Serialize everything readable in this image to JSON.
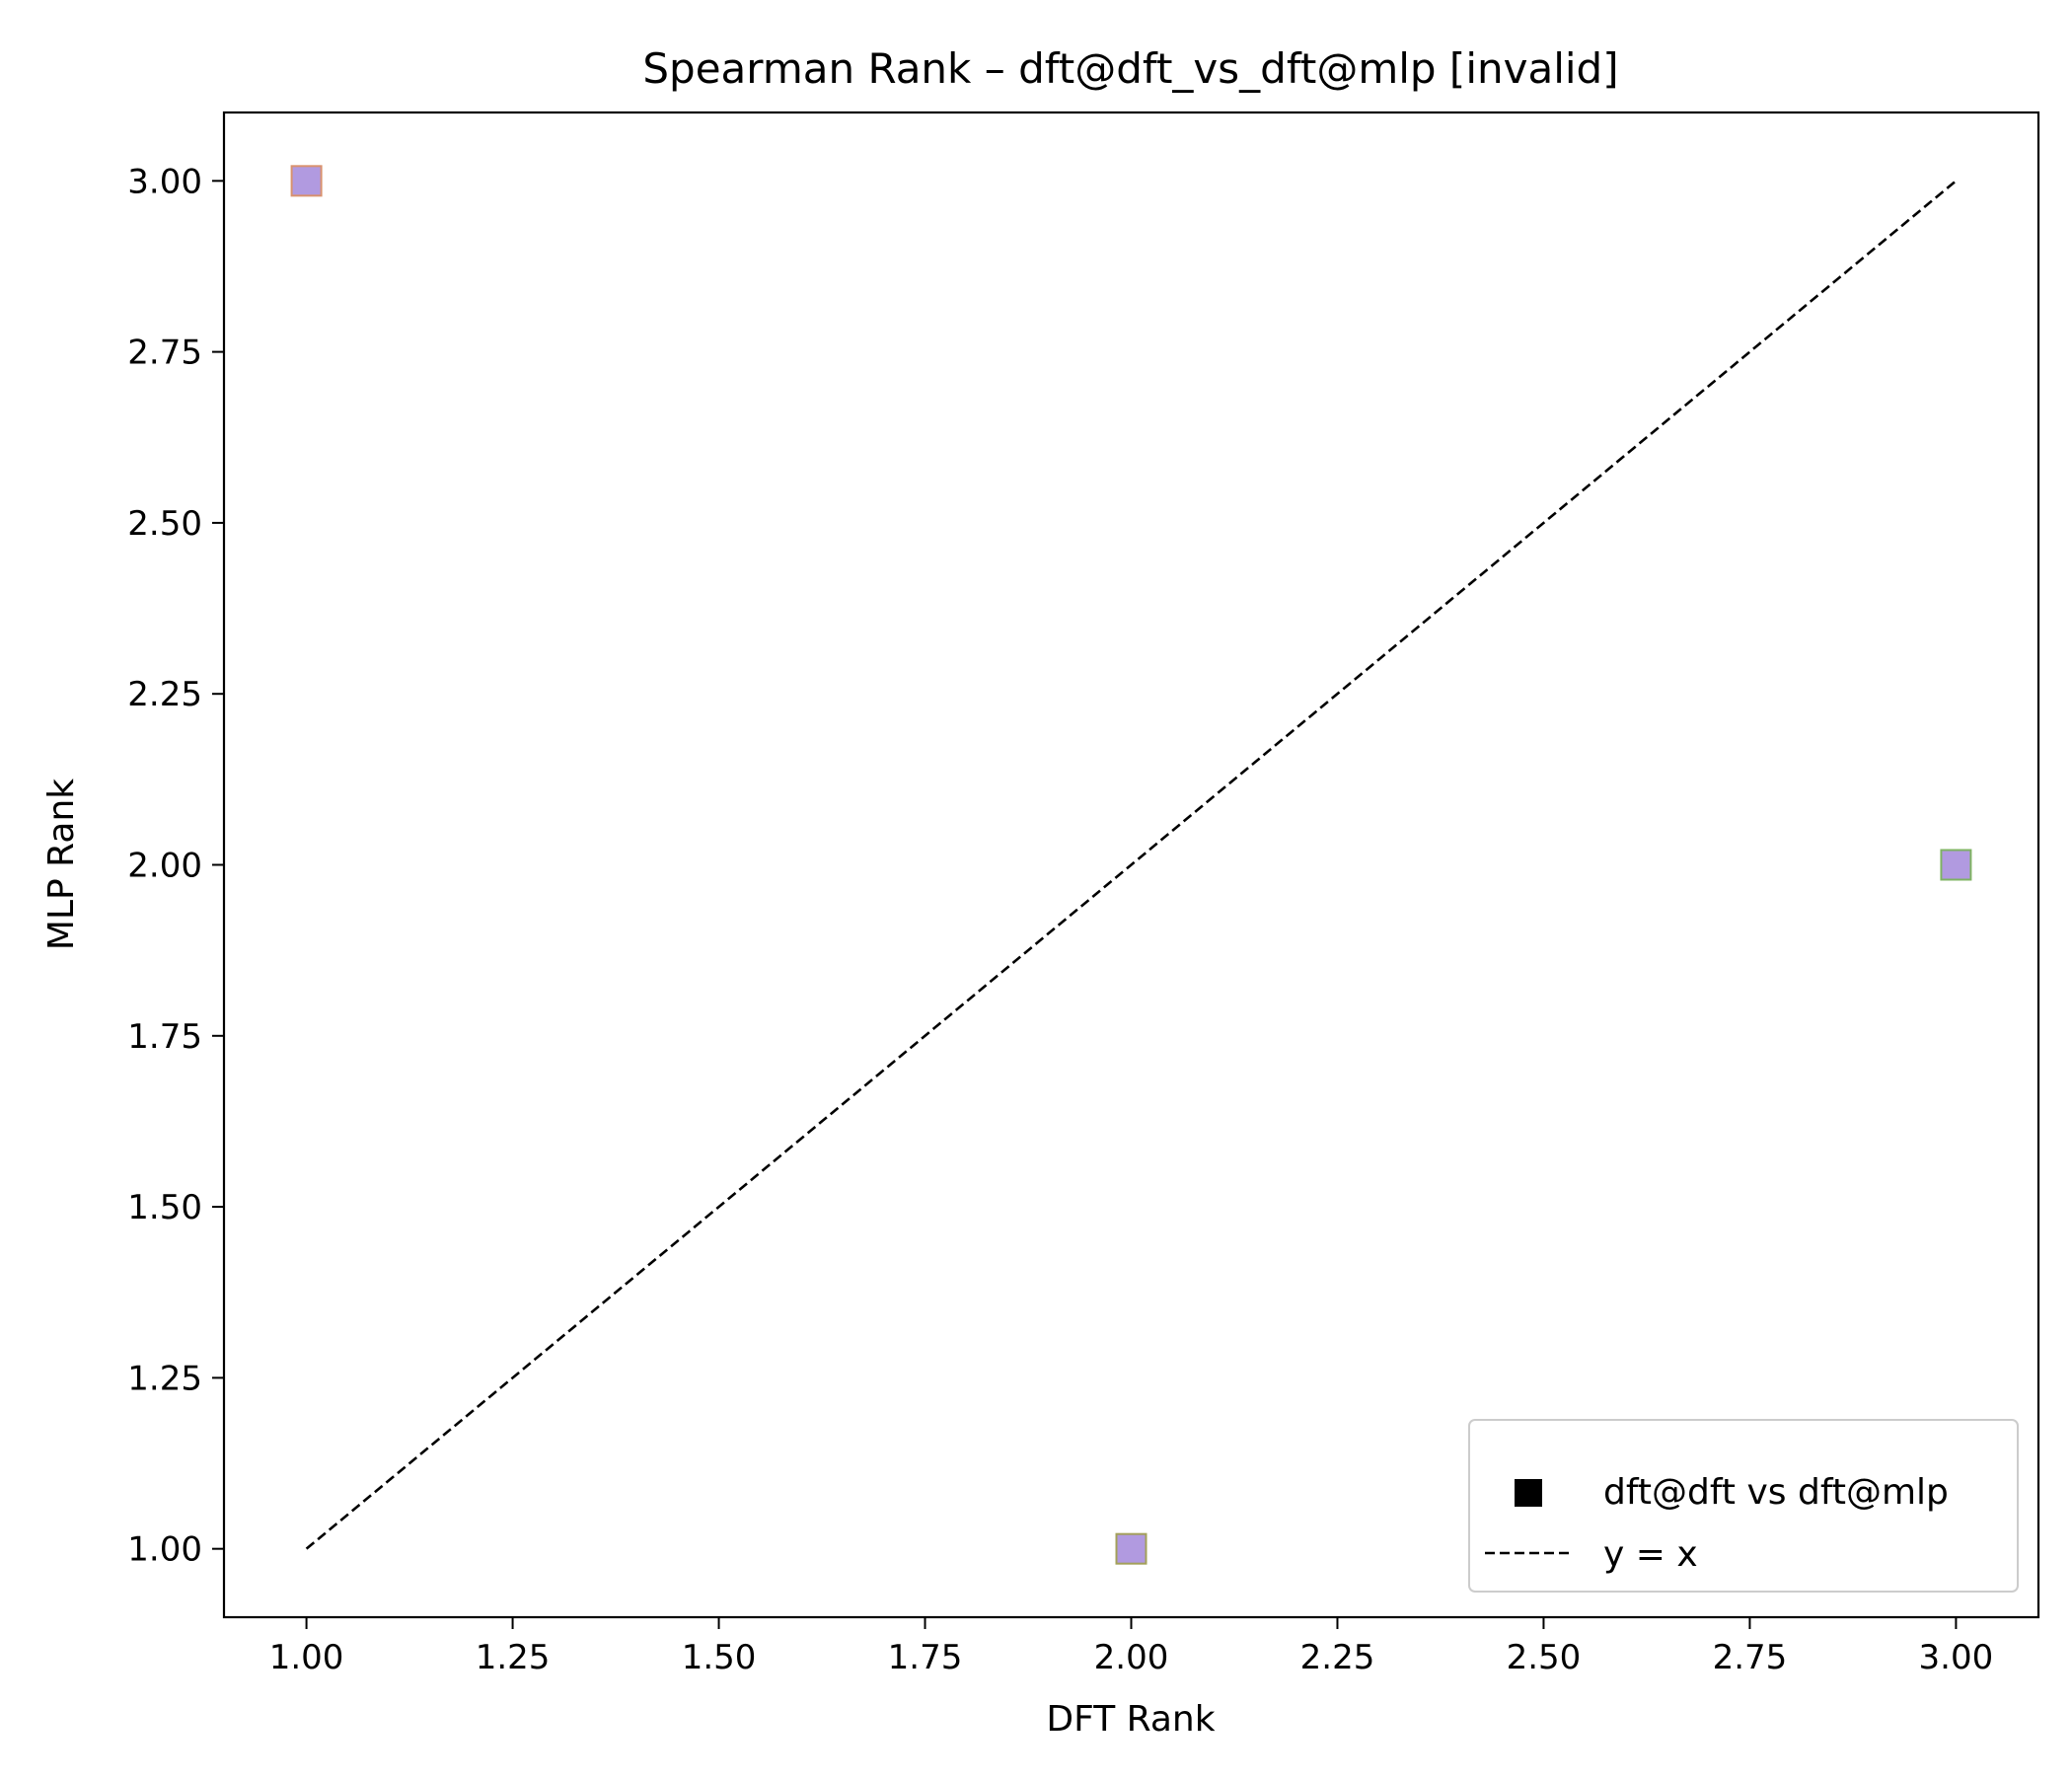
{
  "chart_data": {
    "type": "scatter",
    "title": "Spearman Rank – dft@dft_vs_dft@mlp [invalid]",
    "xlabel": "DFT Rank",
    "ylabel": "MLP Rank",
    "xlim": [
      0.9,
      3.1
    ],
    "ylim": [
      0.9,
      3.1
    ],
    "xticks": [
      1.0,
      1.25,
      1.5,
      1.75,
      2.0,
      2.25,
      2.5,
      2.75,
      3.0
    ],
    "yticks": [
      1.0,
      1.25,
      1.5,
      1.75,
      2.0,
      2.25,
      2.5,
      2.75,
      3.0
    ],
    "xtick_labels": [
      "1.00",
      "1.25",
      "1.50",
      "1.75",
      "2.00",
      "2.25",
      "2.50",
      "2.75",
      "3.00"
    ],
    "ytick_labels": [
      "1.00",
      "1.25",
      "1.50",
      "1.75",
      "2.00",
      "2.25",
      "2.50",
      "2.75",
      "3.00"
    ],
    "grid": false,
    "legend_position": "bottom-right",
    "series": [
      {
        "name": "dft@dft vs dft@mlp",
        "marker": "square",
        "legend_color": "#000000",
        "points": [
          {
            "x": 1,
            "y": 3,
            "fill": "#b19ae0",
            "edge": "#d9926f"
          },
          {
            "x": 2,
            "y": 1,
            "fill": "#b19ae0",
            "edge": "#a3a05a"
          },
          {
            "x": 3,
            "y": 2,
            "fill": "#b19ae0",
            "edge": "#7fb363"
          }
        ]
      },
      {
        "name": "y = x",
        "style": "dashed",
        "color": "#000000",
        "x": [
          1,
          3
        ],
        "y": [
          1,
          3
        ]
      }
    ]
  }
}
